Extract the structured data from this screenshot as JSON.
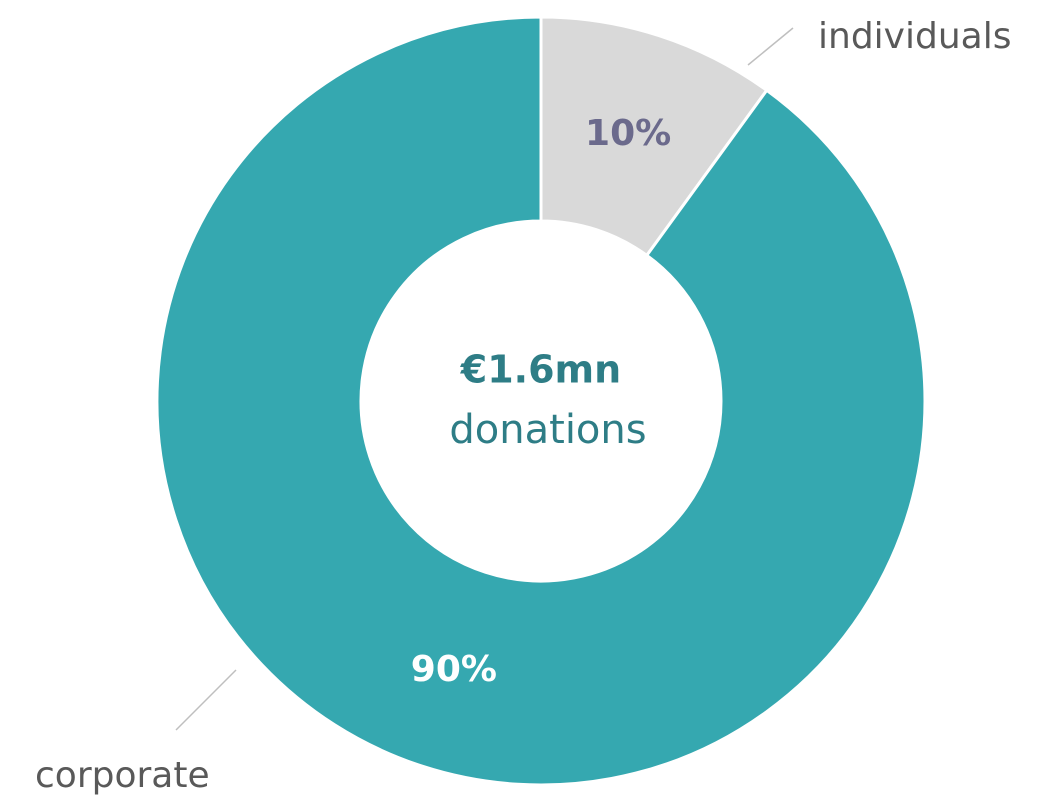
{
  "chart_data": {
    "type": "donut",
    "categories": [
      "individuals",
      "corporate"
    ],
    "values": [
      10,
      90
    ],
    "value_labels": [
      "10%",
      "90%"
    ],
    "colors": [
      "#d9d9d9",
      "#35a8b0"
    ],
    "annotations": [
      "€1.6mn",
      "donations"
    ]
  }
}
